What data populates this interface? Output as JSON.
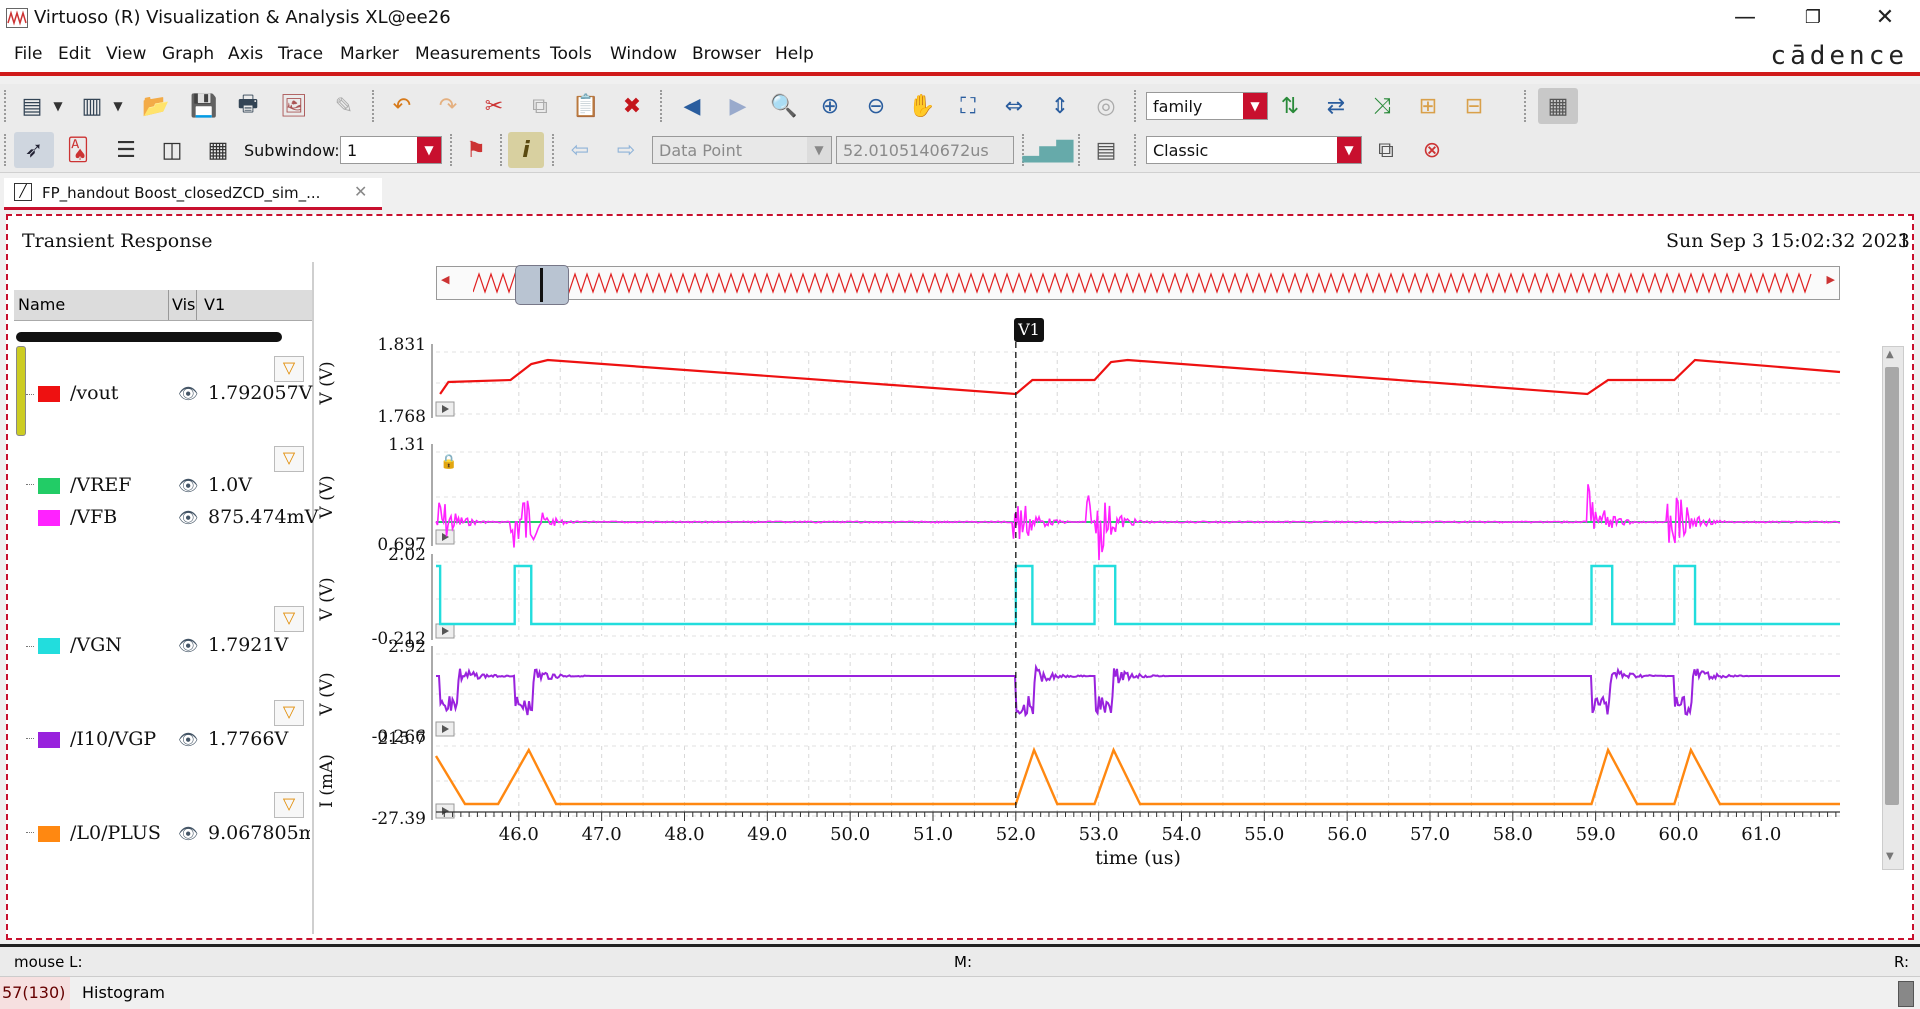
{
  "window": {
    "title": "Virtuoso (R) Visualization & Analysis XL@ee26",
    "brand": "cādence"
  },
  "menu": [
    "File",
    "Edit",
    "View",
    "Graph",
    "Axis",
    "Trace",
    "Marker",
    "Measurements",
    "Tools",
    "Window",
    "Browser",
    "Help"
  ],
  "toolbar2": {
    "family_combo": "family",
    "subwindow_label": "Subwindow:",
    "subwindow_value": "1",
    "datapoint_combo": "Data Point",
    "datapoint_value": "52.0105140672us",
    "style_combo": "Classic"
  },
  "tab": {
    "label": "FP_handout Boost_closedZCD_sim_..."
  },
  "plot": {
    "title": "Transient Response",
    "timestamp": "Sun Sep 3 15:02:32 2023",
    "page_num": "1",
    "marker_label": "V1",
    "xlabel": "time (us)",
    "x_ticks": [
      "46.0",
      "47.0",
      "48.0",
      "49.0",
      "50.0",
      "51.0",
      "52.0",
      "53.0",
      "54.0",
      "55.0",
      "56.0",
      "57.0",
      "58.0",
      "59.0",
      "60.0",
      "61.0"
    ]
  },
  "legend": {
    "header_name": "Name",
    "header_vis": "Vis",
    "header_v1": "V1",
    "signals": [
      {
        "name": "/vout",
        "value": "1.792057V",
        "color": "#ee1111"
      },
      {
        "name": "/VREF",
        "value": "1.0V",
        "color": "#22cc66"
      },
      {
        "name": "/VFB",
        "value": "875.474mV",
        "color": "#ff22ff"
      },
      {
        "name": "/VGN",
        "value": "1.7921V",
        "color": "#22dddd"
      },
      {
        "name": "/I10/VGP",
        "value": "1.7766V",
        "color": "#9922dd"
      },
      {
        "name": "/L0/PLUS",
        "value": "9.067805m.",
        "color": "#ff8811"
      }
    ]
  },
  "strips": [
    {
      "unit": "V (V)",
      "ymax": "1.831",
      "ymin": "1.768"
    },
    {
      "unit": "V (V)",
      "ymax": "1.31",
      "ymin": "0.697"
    },
    {
      "unit": "V (V)",
      "ymax": "2.02",
      "ymin": "-0.212"
    },
    {
      "unit": "V (V)",
      "ymax": "2.92",
      "ymin": "-0.266"
    },
    {
      "unit": "I (mA)",
      "ymax": "215.7",
      "ymin": "-27.39"
    }
  ],
  "statusbar": {
    "left": "mouse L:",
    "mid": "M:",
    "right": "R:"
  },
  "bottombar": {
    "count": "57(130)",
    "label": "Histogram"
  }
}
